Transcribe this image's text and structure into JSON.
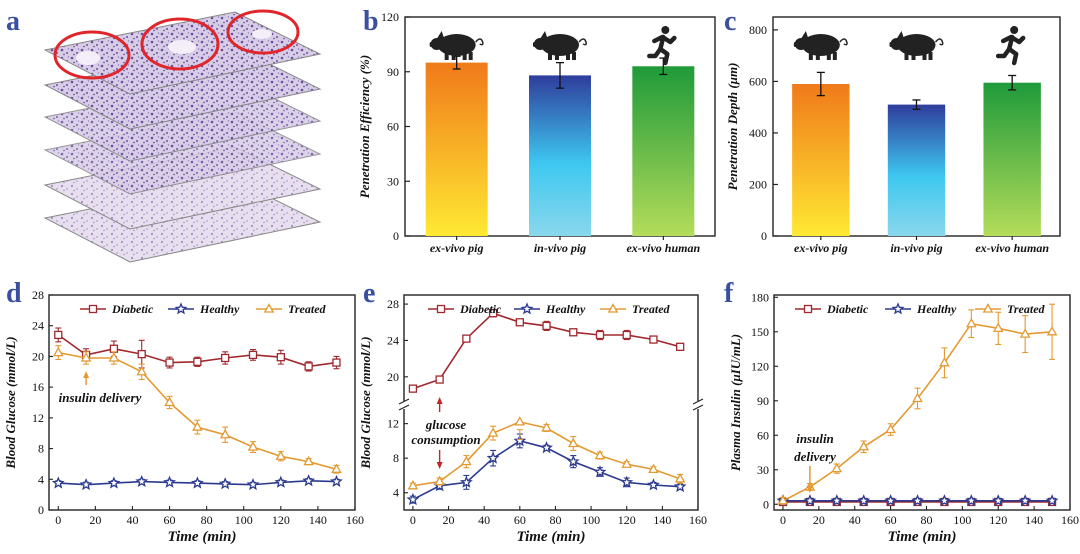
{
  "panel_letters": [
    "a",
    "b",
    "c",
    "d",
    "e",
    "f"
  ],
  "colors": {
    "letter": "#3a4fa0",
    "diabetic": "#a0282e",
    "healthy": "#2b3a8f",
    "treated": "#e39a32",
    "grad_orange_top": "#f07a1a",
    "grad_orange_bottom": "#ffe933",
    "grad_blue_top": "#2f3d9c",
    "grad_blue_bottom": "#7fd8ee",
    "grad_green_top": "#1f9a3a",
    "grad_green_bottom": "#b4dc5a",
    "tissue": "#7b5ea7",
    "highlight": "#e0262a"
  },
  "icons": [
    "pig-icon",
    "pig-icon",
    "running-person-icon"
  ],
  "chart_data": [
    {
      "id": "a",
      "type": "image",
      "description_hidden": false,
      "layers": 6,
      "highlights": 3
    },
    {
      "id": "b",
      "type": "bar",
      "categories": [
        "ex-vivo pig",
        "in-vivo pig",
        "ex-vivo human"
      ],
      "values": [
        95,
        88,
        93
      ],
      "errors": [
        3.5,
        7,
        4.5
      ],
      "ylabel": "Penetration Efficiency (%)",
      "ylim": [
        0,
        120
      ],
      "yticks": [
        0,
        30,
        60,
        90,
        120
      ],
      "icons": [
        "pig-icon",
        "pig-icon",
        "running-person-icon"
      ]
    },
    {
      "id": "c",
      "type": "bar",
      "categories": [
        "ex-vivo pig",
        "in-vivo pig",
        "ex-vivo human"
      ],
      "values": [
        590,
        510,
        595
      ],
      "errors": [
        45,
        18,
        28
      ],
      "ylabel": "Penetration Depth (μm)",
      "ylim": [
        0,
        850
      ],
      "yticks": [
        0,
        200,
        400,
        600,
        800
      ],
      "icons": [
        "pig-icon",
        "pig-icon",
        "running-person-icon"
      ]
    },
    {
      "id": "d",
      "type": "line",
      "xlabel": "Time (min)",
      "ylabel": "Blood Glucose (mmol/L)",
      "xlim": [
        -5,
        160
      ],
      "ylim": [
        0,
        28
      ],
      "xticks": [
        0,
        20,
        40,
        60,
        80,
        100,
        120,
        140,
        160
      ],
      "yticks": [
        0,
        4,
        8,
        12,
        16,
        20,
        24,
        28
      ],
      "x": [
        0,
        15,
        30,
        45,
        60,
        75,
        90,
        105,
        120,
        135,
        150
      ],
      "series": [
        {
          "name": "Diabetic",
          "marker": "square",
          "values": [
            22.8,
            20.2,
            21.0,
            20.3,
            19.2,
            19.3,
            19.8,
            20.2,
            19.9,
            18.7,
            19.2
          ],
          "errors": [
            0.9,
            0.8,
            1.0,
            1.8,
            0.7,
            0.6,
            0.8,
            0.7,
            0.9,
            0.6,
            0.8
          ]
        },
        {
          "name": "Healthy",
          "marker": "star",
          "values": [
            3.5,
            3.3,
            3.5,
            3.7,
            3.6,
            3.5,
            3.4,
            3.3,
            3.6,
            3.8,
            3.7
          ],
          "errors": [
            0.3,
            0.3,
            0.3,
            0.3,
            0.3,
            0.3,
            0.3,
            0.3,
            0.3,
            0.3,
            0.3
          ]
        },
        {
          "name": "Treated",
          "marker": "triangle",
          "values": [
            20.5,
            19.8,
            19.8,
            18.0,
            14.0,
            10.8,
            9.8,
            8.2,
            7.0,
            6.3,
            5.3
          ],
          "errors": [
            0.9,
            0.8,
            0.8,
            1.0,
            0.8,
            0.9,
            1.0,
            0.7,
            0.6,
            0.4,
            0.5
          ]
        }
      ],
      "annotation": "insulin delivery",
      "annotation_x": 15
    },
    {
      "id": "e",
      "type": "line",
      "xlabel": "Time (min)",
      "ylabel": "Blood Glucose (mmol/L)",
      "xlim": [
        -5,
        160
      ],
      "xticks": [
        0,
        20,
        40,
        60,
        80,
        100,
        120,
        140,
        160
      ],
      "axis_break": {
        "lower": [
          2,
          13
        ],
        "upper": [
          18,
          29
        ]
      },
      "yticks_lower": [
        4,
        8,
        12
      ],
      "yticks_upper": [
        20,
        24,
        28
      ],
      "x": [
        0,
        15,
        30,
        45,
        60,
        75,
        90,
        105,
        120,
        135,
        150
      ],
      "series": [
        {
          "name": "Diabetic",
          "marker": "square",
          "values": [
            18.7,
            19.7,
            24.2,
            27.0,
            26.0,
            25.6,
            24.9,
            24.6,
            24.6,
            24.1,
            23.3
          ],
          "errors": [
            0.3,
            0.3,
            0.3,
            0.4,
            0.3,
            0.5,
            0.3,
            0.5,
            0.5,
            0.3,
            0.3
          ]
        },
        {
          "name": "Healthy",
          "marker": "star",
          "values": [
            3.2,
            4.8,
            5.2,
            8.0,
            10.0,
            9.2,
            7.6,
            6.4,
            5.2,
            4.9,
            4.7
          ],
          "errors": [
            0.4,
            0.4,
            0.8,
            0.9,
            0.8,
            0.3,
            0.7,
            0.5,
            0.5,
            0.3,
            0.3
          ]
        },
        {
          "name": "Treated",
          "marker": "triangle",
          "values": [
            4.8,
            5.3,
            7.6,
            10.9,
            12.2,
            11.5,
            9.7,
            8.3,
            7.3,
            6.7,
            5.6
          ],
          "errors": [
            0.3,
            0.4,
            0.7,
            0.8,
            0.9,
            0.4,
            0.8,
            0.4,
            0.3,
            0.3,
            0.5
          ]
        }
      ],
      "annotation": [
        "glucose",
        "consumption"
      ],
      "annotation_x": 15
    },
    {
      "id": "f",
      "type": "line",
      "xlabel": "Time (min)",
      "ylabel": "Plasma Insulin (μIU/mL)",
      "xlim": [
        -5,
        160
      ],
      "ylim": [
        -5,
        182
      ],
      "xticks": [
        0,
        20,
        40,
        60,
        80,
        100,
        120,
        140,
        160
      ],
      "yticks": [
        0,
        30,
        60,
        90,
        120,
        150,
        180
      ],
      "x": [
        0,
        15,
        30,
        45,
        60,
        75,
        90,
        105,
        120,
        135,
        150
      ],
      "series": [
        {
          "name": "Diabetic",
          "marker": "square",
          "values": [
            2,
            2,
            2,
            2,
            2,
            2,
            2,
            2,
            2,
            2,
            2
          ],
          "errors": [
            1.5,
            1.5,
            1.5,
            1.5,
            1.5,
            1.5,
            1.5,
            1.5,
            1.5,
            1.5,
            1.5
          ]
        },
        {
          "name": "Healthy",
          "marker": "star",
          "values": [
            3,
            3,
            3,
            3,
            3,
            3,
            3,
            3,
            3,
            3,
            3
          ],
          "errors": [
            2,
            2,
            2,
            2,
            2,
            2,
            2,
            2,
            2,
            2,
            2
          ]
        },
        {
          "name": "Treated",
          "marker": "triangle",
          "values": [
            3,
            15,
            31,
            50,
            65,
            92,
            123,
            157,
            153,
            148,
            150
          ],
          "errors": [
            3,
            3,
            4,
            5,
            5,
            9,
            13,
            12,
            14,
            16,
            24
          ]
        }
      ],
      "annotation": [
        "insulin",
        "delivery"
      ],
      "annotation_x": 15
    }
  ]
}
